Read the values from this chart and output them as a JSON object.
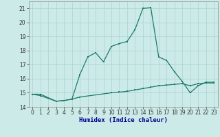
{
  "xlabel": "Humidex (Indice chaleur)",
  "x": [
    0,
    1,
    2,
    3,
    4,
    5,
    6,
    7,
    8,
    9,
    10,
    11,
    12,
    13,
    14,
    15,
    16,
    17,
    18,
    19,
    20,
    21,
    22,
    23
  ],
  "line1_x": [
    0,
    1,
    3,
    4,
    5,
    6,
    10,
    11,
    12,
    13,
    14,
    15,
    16,
    17,
    18,
    19,
    20,
    21,
    22,
    23
  ],
  "line1_y": [
    14.9,
    14.8,
    14.4,
    14.45,
    14.55,
    14.7,
    15.0,
    15.05,
    15.1,
    15.2,
    15.3,
    15.4,
    15.5,
    15.55,
    15.6,
    15.65,
    15.5,
    15.65,
    15.7,
    15.7
  ],
  "line2_x": [
    0,
    1,
    3,
    4,
    5,
    6,
    7,
    8,
    9,
    10,
    11,
    12,
    13,
    14,
    15,
    16,
    17,
    18,
    19,
    20,
    21,
    22,
    23
  ],
  "line2_y": [
    14.9,
    14.9,
    14.4,
    14.45,
    14.55,
    16.3,
    17.55,
    17.85,
    17.2,
    18.3,
    18.5,
    18.65,
    19.5,
    21.0,
    21.05,
    17.55,
    17.3,
    16.5,
    15.8,
    15.0,
    15.5,
    15.75,
    15.75
  ],
  "background_color": "#cceae7",
  "grid_color": "#aad4d0",
  "line_color": "#1a7a6a",
  "ylim": [
    14,
    21.5
  ],
  "yticks": [
    14,
    15,
    16,
    17,
    18,
    19,
    20,
    21
  ],
  "xticks": [
    0,
    1,
    2,
    3,
    4,
    5,
    6,
    7,
    8,
    9,
    10,
    11,
    12,
    13,
    14,
    15,
    16,
    17,
    18,
    19,
    20,
    21,
    22,
    23
  ],
  "xlabel_color": "#00008b",
  "tick_color": "#333333"
}
